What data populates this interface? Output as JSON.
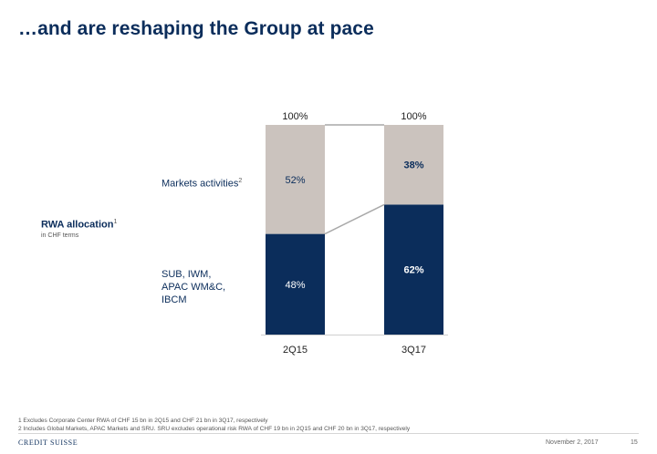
{
  "slide": {
    "title": "…and are reshaping the Group at pace",
    "rwa_title": "RWA allocation",
    "rwa_sup": "1",
    "rwa_subtitle": "in CHF terms",
    "footnotes": [
      "1 Excludes Corporate Center RWA of CHF 15 bn in 2Q15 and CHF 21 bn in 3Q17, respectively",
      "2 Includes Global Markets, APAC Markets and SRU. SRU excludes operational risk RWA of CHF 19 bn in 2Q15 and CHF 20 bn in 3Q17, respectively"
    ],
    "footer": {
      "logo": "CREDIT SUISSE",
      "date": "November 2, 2017",
      "page": "15"
    }
  },
  "chart_data": {
    "type": "bar",
    "stacked": true,
    "categories": [
      "2Q15",
      "3Q17"
    ],
    "totals": [
      "100%",
      "100%"
    ],
    "series": [
      {
        "label": "SUB, IWM,\nAPAC WM&C,\nIBCM",
        "label_sup": "",
        "values": [
          48,
          62
        ],
        "value_labels": [
          "48%",
          "62%"
        ],
        "color": "#0b2d5b",
        "text_color": "#ffffff"
      },
      {
        "label": "Markets activities",
        "label_sup": "2",
        "values": [
          52,
          38
        ],
        "value_labels": [
          "52%",
          "38%"
        ],
        "color": "#cbc3be",
        "text_color": "#0b2d5b"
      }
    ],
    "bold_value_category": "3Q17",
    "ylim": [
      0,
      100
    ],
    "connector_color": "#a8a8a8"
  }
}
